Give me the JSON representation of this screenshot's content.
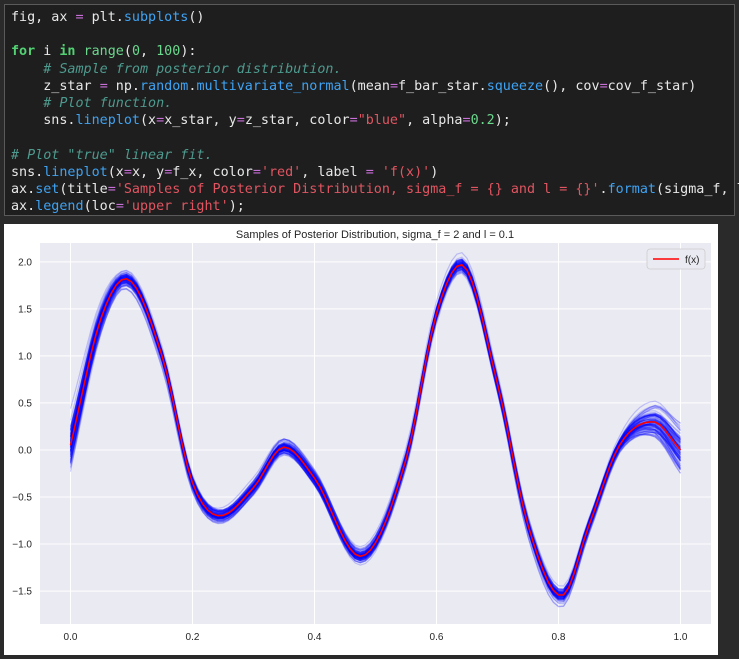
{
  "code_lines": [
    [
      {
        "t": "fig, ax ",
        "c": ""
      },
      {
        "t": "=",
        "c": "op"
      },
      {
        "t": " plt.",
        "c": ""
      },
      {
        "t": "subplots",
        "c": "fn"
      },
      {
        "t": "()",
        "c": ""
      }
    ],
    [],
    [
      {
        "t": "for",
        "c": "kw"
      },
      {
        "t": " i ",
        "c": ""
      },
      {
        "t": "in",
        "c": "kw"
      },
      {
        "t": " ",
        "c": ""
      },
      {
        "t": "range",
        "c": "num"
      },
      {
        "t": "(",
        "c": ""
      },
      {
        "t": "0",
        "c": "num"
      },
      {
        "t": ", ",
        "c": ""
      },
      {
        "t": "100",
        "c": "num"
      },
      {
        "t": "):",
        "c": ""
      }
    ],
    [
      {
        "t": "    ",
        "c": ""
      },
      {
        "t": "# Sample from posterior distribution.",
        "c": "cmt"
      }
    ],
    [
      {
        "t": "    z_star ",
        "c": ""
      },
      {
        "t": "=",
        "c": "op"
      },
      {
        "t": " np.",
        "c": ""
      },
      {
        "t": "random",
        "c": "fn"
      },
      {
        "t": ".",
        "c": ""
      },
      {
        "t": "multivariate_normal",
        "c": "fn"
      },
      {
        "t": "(mean",
        "c": ""
      },
      {
        "t": "=",
        "c": "op"
      },
      {
        "t": "f_bar_star.",
        "c": ""
      },
      {
        "t": "squeeze",
        "c": "fn"
      },
      {
        "t": "(), cov",
        "c": ""
      },
      {
        "t": "=",
        "c": "op"
      },
      {
        "t": "cov_f_star)",
        "c": ""
      }
    ],
    [
      {
        "t": "    ",
        "c": ""
      },
      {
        "t": "# Plot function.",
        "c": "cmt"
      }
    ],
    [
      {
        "t": "    sns.",
        "c": ""
      },
      {
        "t": "lineplot",
        "c": "fn"
      },
      {
        "t": "(x",
        "c": ""
      },
      {
        "t": "=",
        "c": "op"
      },
      {
        "t": "x_star, y",
        "c": ""
      },
      {
        "t": "=",
        "c": "op"
      },
      {
        "t": "z_star, color",
        "c": ""
      },
      {
        "t": "=",
        "c": "op"
      },
      {
        "t": "\"blue\"",
        "c": "str"
      },
      {
        "t": ", alpha",
        "c": ""
      },
      {
        "t": "=",
        "c": "op"
      },
      {
        "t": "0.2",
        "c": "num"
      },
      {
        "t": ");",
        "c": ""
      }
    ],
    [],
    [
      {
        "t": "# Plot \"true\" linear fit.",
        "c": "cmt"
      }
    ],
    [
      {
        "t": "sns.",
        "c": ""
      },
      {
        "t": "lineplot",
        "c": "fn"
      },
      {
        "t": "(x",
        "c": ""
      },
      {
        "t": "=",
        "c": "op"
      },
      {
        "t": "x, y",
        "c": ""
      },
      {
        "t": "=",
        "c": "op"
      },
      {
        "t": "f_x, color",
        "c": ""
      },
      {
        "t": "=",
        "c": "op"
      },
      {
        "t": "'red'",
        "c": "str"
      },
      {
        "t": ", label ",
        "c": ""
      },
      {
        "t": "=",
        "c": "op"
      },
      {
        "t": " ",
        "c": ""
      },
      {
        "t": "'f(x)'",
        "c": "str"
      },
      {
        "t": ")",
        "c": ""
      }
    ],
    [
      {
        "t": "ax.",
        "c": ""
      },
      {
        "t": "set",
        "c": "fn"
      },
      {
        "t": "(title",
        "c": ""
      },
      {
        "t": "=",
        "c": "op"
      },
      {
        "t": "'Samples of Posterior Distribution, sigma_f = {} and l = {}'",
        "c": "str"
      },
      {
        "t": ".",
        "c": ""
      },
      {
        "t": "format",
        "c": "fn"
      },
      {
        "t": "(sigma_f, l))",
        "c": ""
      }
    ],
    [
      {
        "t": "ax.",
        "c": ""
      },
      {
        "t": "legend",
        "c": "fn"
      },
      {
        "t": "(loc",
        "c": ""
      },
      {
        "t": "=",
        "c": "op"
      },
      {
        "t": "'upper right'",
        "c": "str"
      },
      {
        "t": ");",
        "c": ""
      }
    ]
  ],
  "colors": {
    "code_bg": "#1e1e1e",
    "axes_bg": "#eaeaf2",
    "grid": "#ffffff",
    "sample": "#0000ff",
    "mean": "#ff0000"
  },
  "chart_data": {
    "type": "line",
    "title": "Samples of Posterior Distribution, sigma_f = 2 and l = 0.1",
    "xlim": [
      -0.05,
      1.05
    ],
    "ylim": [
      -1.85,
      2.2
    ],
    "xticks": [
      0.0,
      0.2,
      0.4,
      0.6,
      0.8,
      1.0
    ],
    "xtick_labels": [
      "0.0",
      "0.2",
      "0.4",
      "0.6",
      "0.8",
      "1.0"
    ],
    "yticks": [
      -1.5,
      -1.0,
      -0.5,
      0.0,
      0.5,
      1.0,
      1.5,
      2.0
    ],
    "ytick_labels": [
      "−1.5",
      "−1.0",
      "−0.5",
      "0.0",
      "0.5",
      "1.0",
      "1.5",
      "2.0"
    ],
    "grid": true,
    "legend_loc": "upper right",
    "series": [
      {
        "name": "f(x)",
        "color": "red",
        "x": [
          0.0,
          0.05,
          0.09,
          0.15,
          0.2,
          0.245,
          0.3,
          0.35,
          0.4,
          0.475,
          0.55,
          0.6,
          0.64,
          0.7,
          0.75,
          0.805,
          0.85,
          0.9,
          0.955,
          1.0
        ],
        "y": [
          0.05,
          1.4,
          1.82,
          1.0,
          -0.35,
          -0.7,
          -0.4,
          0.03,
          -0.3,
          -1.13,
          -0.1,
          1.45,
          1.97,
          0.7,
          -0.8,
          -1.55,
          -0.8,
          0.05,
          0.3,
          0.0
        ]
      }
    ],
    "samples": {
      "count": 100,
      "color": "blue",
      "alpha": 0.2
    }
  }
}
